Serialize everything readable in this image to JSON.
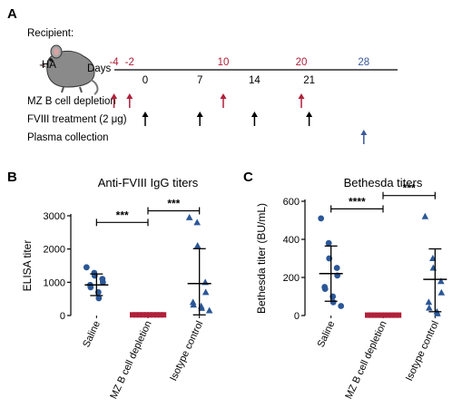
{
  "panel_a": {
    "letter": "A",
    "recipient_label": "Recipient:",
    "mouse_label": "HA",
    "days_label": "Days",
    "days_above": [
      {
        "day": -4,
        "text": "-4",
        "color": "#b0203a"
      },
      {
        "day": -2,
        "text": "-2",
        "color": "#b0203a"
      },
      {
        "day": 10,
        "text": "10",
        "color": "#b0203a"
      },
      {
        "day": 20,
        "text": "20",
        "color": "#b0203a"
      },
      {
        "day": 28,
        "text": "28",
        "color": "#3a5a9a"
      }
    ],
    "days_below": [
      {
        "day": 0,
        "text": "0"
      },
      {
        "day": 7,
        "text": "7"
      },
      {
        "day": 14,
        "text": "14"
      },
      {
        "day": 21,
        "text": "21"
      }
    ],
    "rows": [
      {
        "label": "MZ B cell depletion",
        "days": [
          -4,
          -2,
          10,
          20
        ],
        "color": "#b0203a"
      },
      {
        "label": "FVIII treatment (2 μg)",
        "days": [
          0,
          7,
          14,
          21
        ],
        "color": "#000000"
      },
      {
        "label": "Plasma collection",
        "days": [
          28
        ],
        "color": "#3a5a9a"
      }
    ]
  },
  "chart_data": [
    {
      "panel": "B",
      "type": "scatter",
      "title": "Anti-FVIII IgG titers",
      "ylabel": "ELISA titer",
      "ylim": [
        0,
        3000
      ],
      "yticks": [
        0,
        1000,
        2000,
        3000
      ],
      "categories": [
        "Saline",
        "MZ B cell depletion",
        "Isotype control"
      ],
      "series": [
        {
          "category": "Saline",
          "marker": "circle",
          "color": "#2b5797",
          "values": [
            1450,
            1280,
            1200,
            1100,
            1000,
            920,
            850,
            700,
            520
          ],
          "mean": 920,
          "sd_low": 600,
          "sd_high": 1250
        },
        {
          "category": "MZ B cell depletion",
          "marker": "square",
          "color": "#b0203a",
          "values": [
            20,
            20,
            20,
            20,
            20,
            20,
            20,
            20,
            20,
            20
          ],
          "mean": 20,
          "sd_low": 0,
          "sd_high": 40
        },
        {
          "category": "Isotype control",
          "marker": "triangle",
          "color": "#2b5797",
          "values": [
            2950,
            2800,
            2100,
            1000,
            700,
            400,
            320,
            280,
            220,
            150
          ],
          "mean": 960,
          "sd_low": 20,
          "sd_high": 2010
        }
      ],
      "significance": [
        {
          "from": 0,
          "to": 1,
          "label": "***",
          "y": 2800
        },
        {
          "from": 1,
          "to": 2,
          "label": "***",
          "y": 3150
        }
      ]
    },
    {
      "panel": "C",
      "type": "scatter",
      "title": "Bethesda titers",
      "ylabel": "Bethesda titer (BU/mL)",
      "ylim": [
        0,
        600
      ],
      "yticks": [
        0,
        200,
        400,
        600
      ],
      "categories": [
        "Saline",
        "MZ B cell depletion",
        "Isotype control"
      ],
      "series": [
        {
          "category": "Saline",
          "marker": "circle",
          "color": "#2b5797",
          "values": [
            510,
            380,
            300,
            250,
            210,
            150,
            140,
            100,
            70,
            50
          ],
          "mean": 220,
          "sd_low": 75,
          "sd_high": 365
        },
        {
          "category": "MZ B cell depletion",
          "marker": "square",
          "color": "#b0203a",
          "values": [
            2,
            2,
            2,
            2,
            2,
            2,
            2,
            2,
            2,
            2
          ],
          "mean": 2,
          "sd_low": 0,
          "sd_high": 4
        },
        {
          "category": "Isotype control",
          "marker": "triangle",
          "color": "#2b5797",
          "values": [
            520,
            300,
            250,
            180,
            120,
            70,
            40,
            20,
            10
          ],
          "mean": 190,
          "sd_low": 20,
          "sd_high": 350
        }
      ],
      "significance": [
        {
          "from": 0,
          "to": 1,
          "label": "****",
          "y": 560
        },
        {
          "from": 1,
          "to": 2,
          "label": "***",
          "y": 630
        }
      ]
    }
  ],
  "panel_letters": {
    "b": "B",
    "c": "C"
  }
}
